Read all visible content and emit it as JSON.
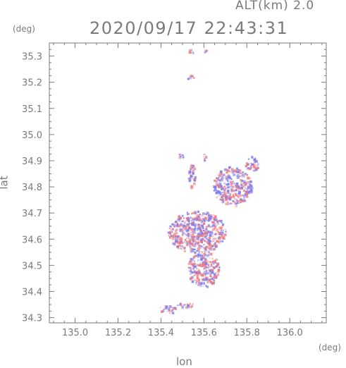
{
  "header": {
    "altitude": "ALT(km)  2.0",
    "datetime": "2020/09/17 22:43:31"
  },
  "chart_data": {
    "type": "heatmap",
    "title": "2020/09/17 22:43:31",
    "subtitle": "ALT(km)  2.0",
    "xlabel": "lon",
    "ylabel": "lat",
    "x_unit": "(deg)",
    "y_unit": "(deg)",
    "xlim": [
      134.88,
      136.17
    ],
    "ylim": [
      34.28,
      35.35
    ],
    "xticks": [
      135.0,
      135.2,
      135.4,
      135.6,
      135.8,
      136.0
    ],
    "xtick_labels": [
      "135.0",
      "135.2",
      "135.4",
      "135.6",
      "135.8",
      "136.0"
    ],
    "yticks": [
      34.3,
      34.4,
      34.5,
      34.6,
      34.7,
      34.8,
      34.9,
      35.0,
      35.1,
      35.2,
      35.3
    ],
    "ytick_labels": [
      "34.3",
      "34.4",
      "34.5",
      "34.6",
      "34.7",
      "34.8",
      "34.9",
      "35.0",
      "35.1",
      "35.2",
      "35.3"
    ],
    "grid": false,
    "colors": {
      "positive": "#f07a7a",
      "negative": "#7a7af2",
      "frame": "#7a7a7a"
    },
    "clusters": [
      {
        "lon": [
          135.52,
          135.55
        ],
        "lat": [
          35.31,
          35.33
        ]
      },
      {
        "lon": [
          135.6,
          135.61
        ],
        "lat": [
          35.31,
          35.33
        ]
      },
      {
        "lon": [
          135.52,
          135.55
        ],
        "lat": [
          35.21,
          35.23
        ]
      },
      {
        "lon": [
          135.48,
          135.5
        ],
        "lat": [
          34.91,
          34.94
        ]
      },
      {
        "lon": [
          135.59,
          135.61
        ],
        "lat": [
          34.9,
          34.93
        ]
      },
      {
        "lon": [
          135.52,
          135.56
        ],
        "lat": [
          34.8,
          34.89
        ]
      },
      {
        "lon": [
          135.64,
          135.82
        ],
        "lat": [
          34.73,
          34.88
        ]
      },
      {
        "lon": [
          135.79,
          135.85
        ],
        "lat": [
          34.86,
          34.92
        ]
      },
      {
        "lon": [
          135.43,
          135.7
        ],
        "lat": [
          34.55,
          34.71
        ]
      },
      {
        "lon": [
          135.52,
          135.67
        ],
        "lat": [
          34.42,
          34.56
        ]
      },
      {
        "lon": [
          135.39,
          135.47
        ],
        "lat": [
          34.32,
          34.35
        ]
      },
      {
        "lon": [
          135.47,
          135.56
        ],
        "lat": [
          34.34,
          34.36
        ]
      }
    ]
  }
}
